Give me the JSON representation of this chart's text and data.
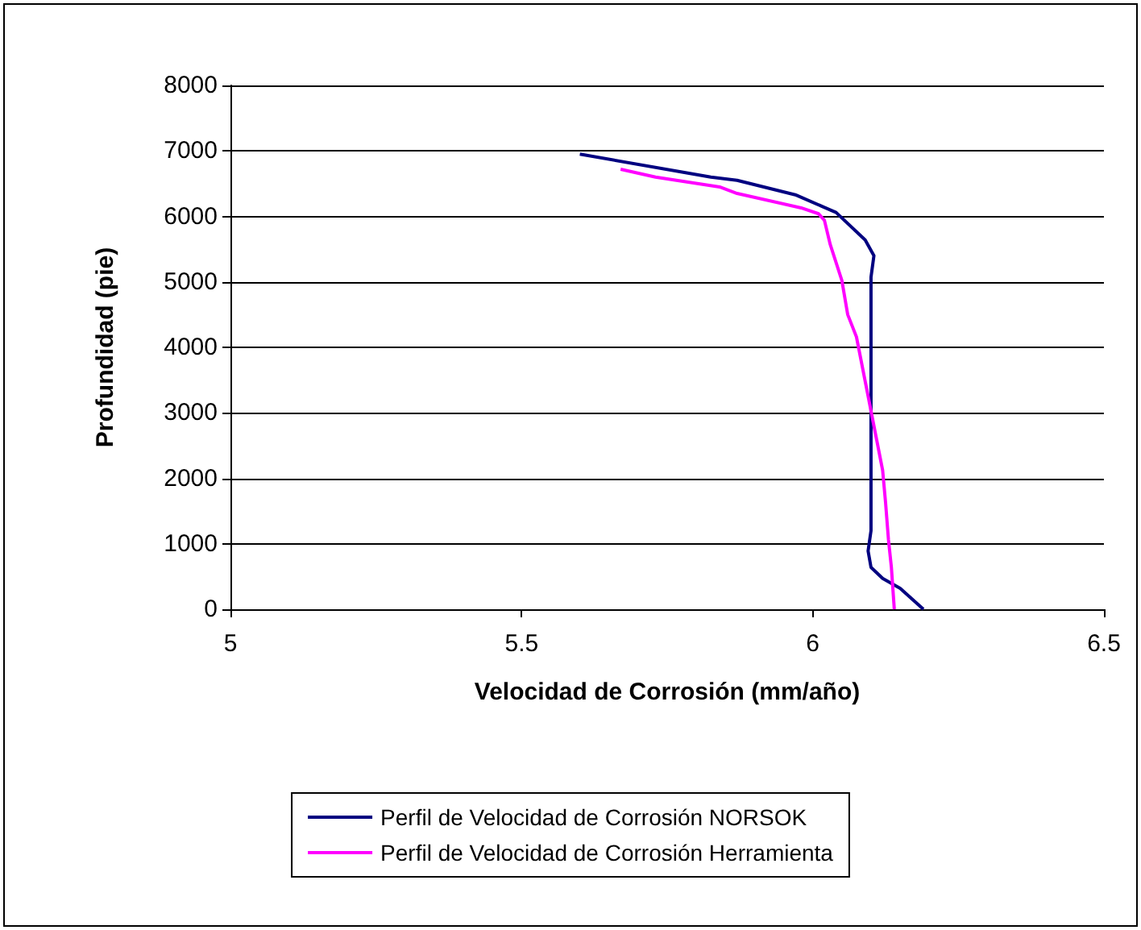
{
  "chart_data": {
    "type": "line",
    "xlabel": "Velocidad de Corrosión (mm/año)",
    "ylabel": "Profundidad (pie)",
    "xlim": [
      5,
      6.5
    ],
    "xticks": [
      5,
      5.5,
      6,
      6.5
    ],
    "ylim": [
      0,
      8000
    ],
    "yticks": [
      0,
      1000,
      2000,
      3000,
      4000,
      5000,
      6000,
      7000,
      8000
    ],
    "grid": "y",
    "legend": "bottom",
    "marker": "none",
    "line_style": "solid",
    "series": [
      {
        "name": "Perfil de Velocidad de Corrosión NORSOK",
        "color": "#000080",
        "x": [
          5.6,
          5.825,
          5.87,
          5.97,
          6.04,
          6.09,
          6.105,
          6.1,
          6.1,
          6.095,
          6.1,
          6.12,
          6.15,
          6.19
        ],
        "values": [
          6950,
          6600,
          6550,
          6330,
          6060,
          5640,
          5400,
          5070,
          1200,
          890,
          640,
          470,
          320,
          0
        ]
      },
      {
        "name": "Perfil de Velocidad de Corrosión Herramienta",
        "color": "#ff00ff",
        "x": [
          5.67,
          5.73,
          5.84,
          5.87,
          5.98,
          6.01,
          6.02,
          6.03,
          6.05,
          6.06,
          6.075,
          6.1,
          6.12,
          6.125,
          6.13,
          6.135,
          6.14
        ],
        "values": [
          6720,
          6600,
          6450,
          6350,
          6130,
          6040,
          5940,
          5570,
          5020,
          4500,
          4160,
          3030,
          2120,
          1630,
          1060,
          640,
          0
        ]
      }
    ]
  }
}
